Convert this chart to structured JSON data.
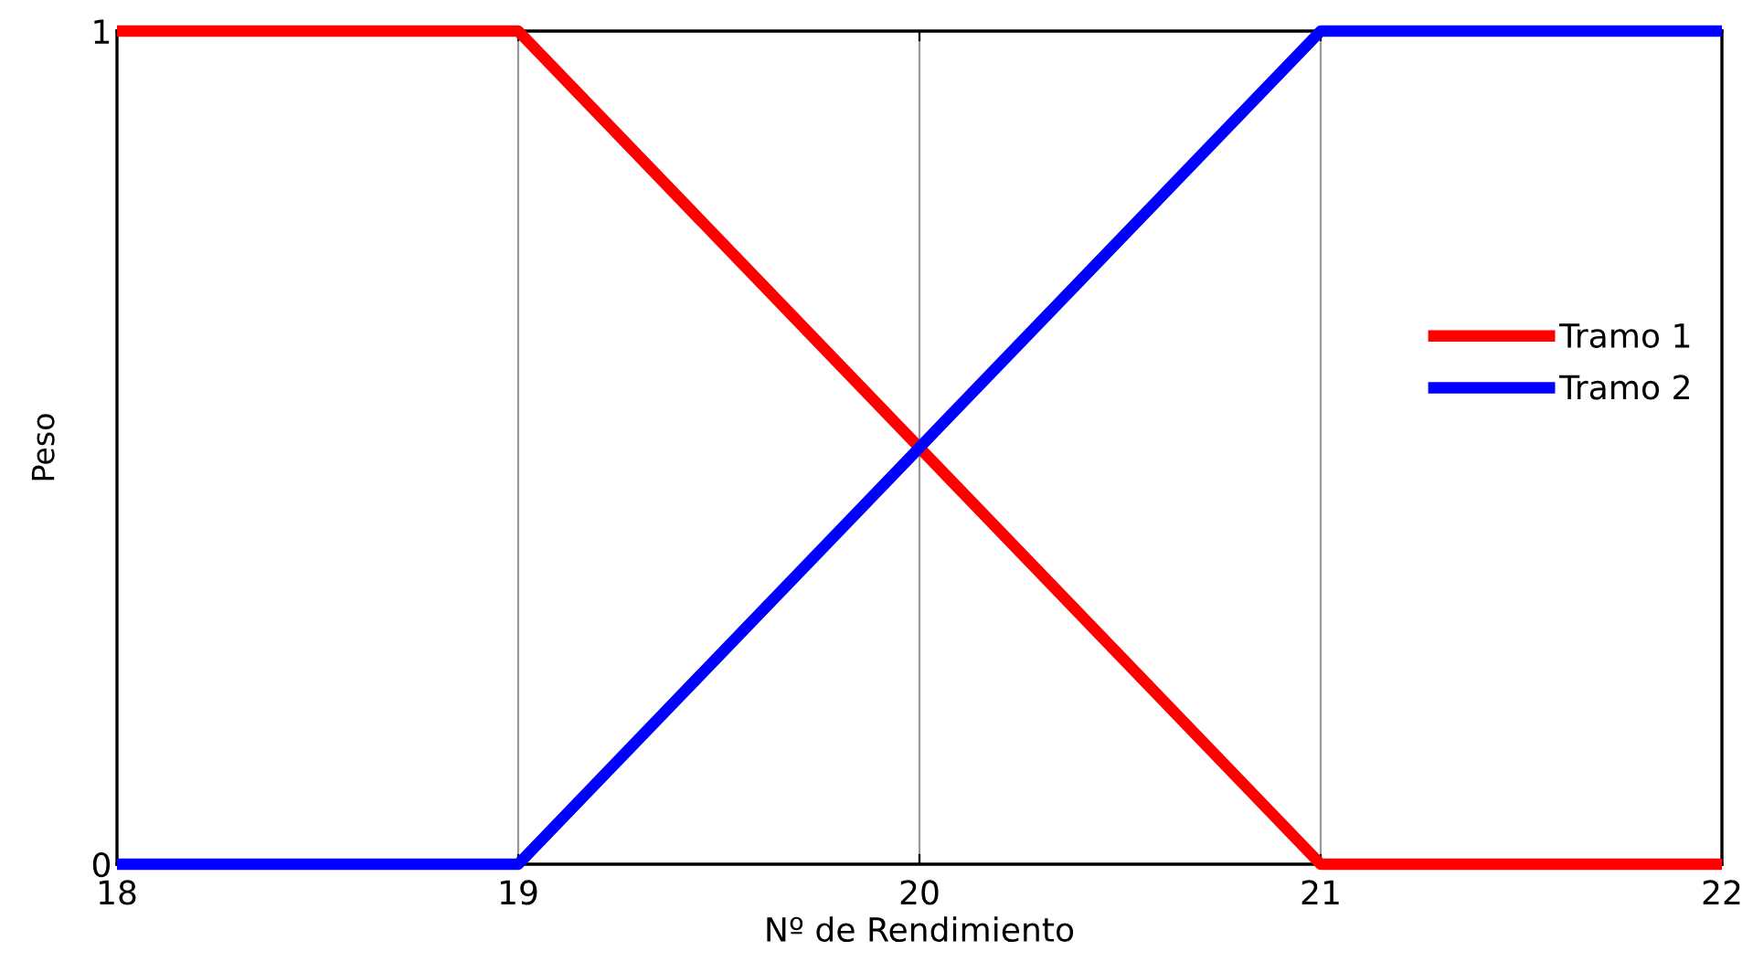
{
  "chart_data": {
    "type": "line",
    "xlabel": "Nº de Rendimiento",
    "ylabel": "Peso",
    "x": [
      18,
      19,
      21,
      22
    ],
    "series": [
      {
        "name": "Tramo 1",
        "color": "#ff0000",
        "values": [
          1,
          1,
          0,
          0
        ]
      },
      {
        "name": "Tramo 2",
        "color": "#0000ff",
        "values": [
          0,
          0,
          1,
          1
        ]
      }
    ],
    "xlim": [
      18,
      22
    ],
    "ylim": [
      0,
      1
    ],
    "xticks": [
      18,
      19,
      20,
      21,
      22
    ],
    "yticks": [
      0,
      1
    ],
    "grid": "x",
    "legend": "right",
    "marker": "none",
    "line_style": "solid"
  }
}
